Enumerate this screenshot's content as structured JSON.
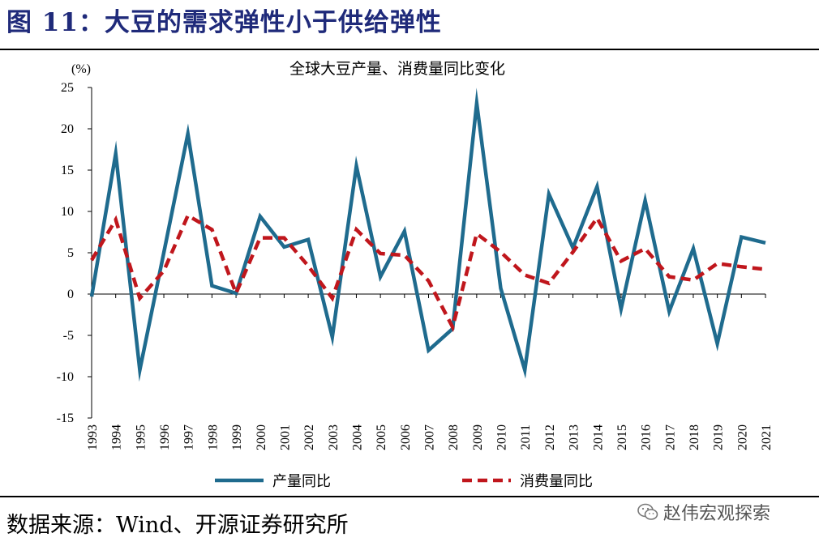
{
  "figure": {
    "title": "图 11：大豆的需求弹性小于供给弹性",
    "source": "数据来源：Wind、开源证券研究所",
    "watermark": "赵伟宏观探索"
  },
  "chart_data": {
    "type": "line",
    "title": "全球大豆产量、消费量同比变化",
    "ylabel": "(%)",
    "xlabel": "",
    "ylim": [
      -15,
      25
    ],
    "yticks": [
      25,
      20,
      15,
      10,
      5,
      0,
      -5,
      -10,
      -15
    ],
    "categories": [
      "1993",
      "1994",
      "1995",
      "1996",
      "1997",
      "1998",
      "1999",
      "2000",
      "2001",
      "2002",
      "2003",
      "2004",
      "2005",
      "2006",
      "2007",
      "2008",
      "2009",
      "2010",
      "2011",
      "2012",
      "2013",
      "2014",
      "2015",
      "2016",
      "2017",
      "2018",
      "2019",
      "2020",
      "2021"
    ],
    "series": [
      {
        "name": "产量同比",
        "color": "#1f6b8e",
        "style": "solid",
        "values": [
          -0.3,
          17.0,
          -9.2,
          5.0,
          19.4,
          1.0,
          0.1,
          9.4,
          5.7,
          6.6,
          -5.2,
          15.5,
          2.1,
          7.6,
          -6.8,
          -4.2,
          23.1,
          0.7,
          -9.2,
          12.1,
          5.6,
          13.0,
          -1.8,
          11.3,
          -2.1,
          5.5,
          -6.0,
          6.9,
          6.2
        ]
      },
      {
        "name": "消费量同比",
        "color": "#c0161c",
        "style": "dashed",
        "values": [
          4.1,
          9.0,
          -0.5,
          2.8,
          9.5,
          7.8,
          0.1,
          6.8,
          6.8,
          3.4,
          -0.5,
          7.8,
          4.9,
          4.7,
          1.6,
          -4.0,
          7.3,
          5.1,
          2.3,
          1.3,
          5.1,
          9.2,
          4.0,
          5.5,
          2.1,
          1.7,
          3.7,
          3.3,
          3.0
        ]
      }
    ],
    "legend": "bottom"
  }
}
